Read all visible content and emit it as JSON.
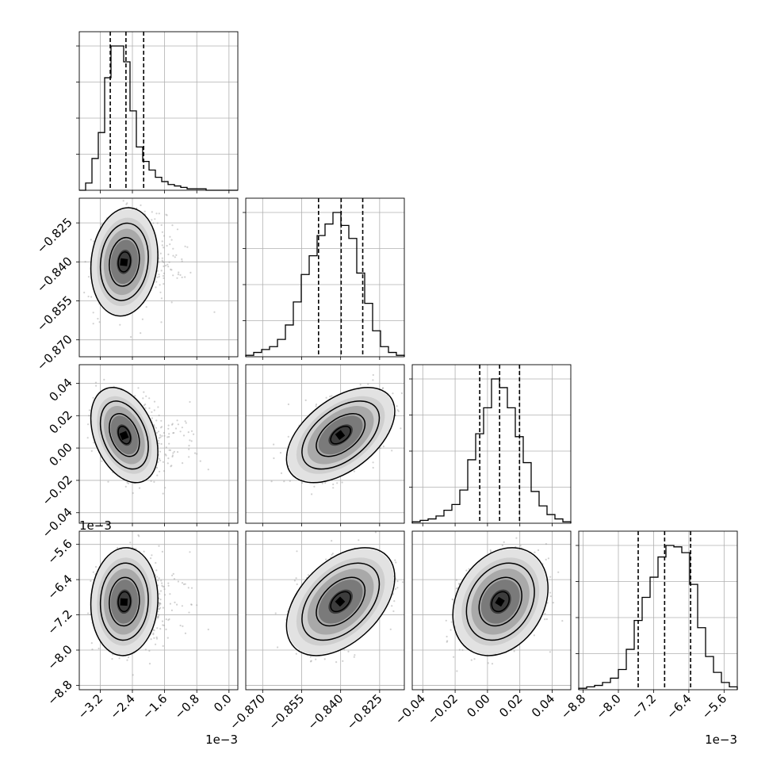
{
  "chart_data": {
    "type": "corner",
    "grid": true,
    "params": [
      {
        "range": [
          -3.72,
          0.22
        ],
        "ticks": [
          -3.2,
          -2.4,
          -1.6,
          -0.8,
          0.0
        ],
        "tick_labels": [
          "−3.2",
          "−2.4",
          "−1.6",
          "−0.8",
          "0.0"
        ],
        "offset": "1e−3",
        "quantiles": [
          -2.95,
          -2.56,
          -2.12
        ],
        "hist": [
          0,
          5,
          22,
          40,
          78,
          100,
          100,
          89,
          55,
          30,
          20,
          14,
          9,
          6,
          4,
          3,
          2,
          1,
          1,
          1,
          0,
          0,
          0,
          0,
          0
        ],
        "peak": [
          -2.6,
          -0.84,
          0.008,
          -6.9
        ],
        "sigma": 0.34
      },
      {
        "range": [
          -0.8765,
          -0.8155
        ],
        "ticks": [
          -0.87,
          -0.855,
          -0.84,
          -0.825
        ],
        "tick_labels": [
          "−0.870",
          "−0.855",
          "−0.840",
          "−0.825"
        ],
        "quantiles": [
          -0.8485,
          -0.8398,
          -0.8315
        ],
        "hist": [
          1,
          3,
          5,
          7,
          12,
          22,
          38,
          57,
          70,
          84,
          92,
          100,
          91,
          82,
          58,
          37,
          18,
          7,
          3,
          1
        ],
        "sigma": 0.0085
      },
      {
        "range": [
          -0.0465,
          0.0515
        ],
        "ticks": [
          -0.04,
          -0.02,
          0.0,
          0.02,
          0.04
        ],
        "tick_labels": [
          "−0.04",
          "−0.02",
          "0.00",
          "0.02",
          "0.04"
        ],
        "quantiles": [
          -0.0048,
          0.0075,
          0.0198
        ],
        "hist": [
          1,
          2,
          3,
          5,
          9,
          13,
          23,
          44,
          62,
          80,
          100,
          94,
          80,
          60,
          42,
          22,
          12,
          6,
          3,
          1
        ],
        "sigma": 0.012
      },
      {
        "range": [
          -8.9,
          -5.3
        ],
        "ticks": [
          -8.8,
          -8.0,
          -7.2,
          -6.4,
          -5.6
        ],
        "tick_labels": [
          "−8.8",
          "−8.0",
          "−7.2",
          "−6.4",
          "−5.6"
        ],
        "offset": "1e−3",
        "quantiles": [
          -7.55,
          -6.95,
          -6.36
        ],
        "hist": [
          1,
          2,
          3,
          5,
          8,
          14,
          28,
          48,
          64,
          78,
          92,
          100,
          99,
          95,
          73,
          43,
          23,
          12,
          5,
          2
        ],
        "sigma": 0.5
      }
    ],
    "correlations": {
      "1-0": 0.12,
      "2-0": -0.35,
      "2-1": 0.5,
      "3-0": 0.05,
      "3-1": 0.45,
      "3-2": 0.25
    }
  }
}
